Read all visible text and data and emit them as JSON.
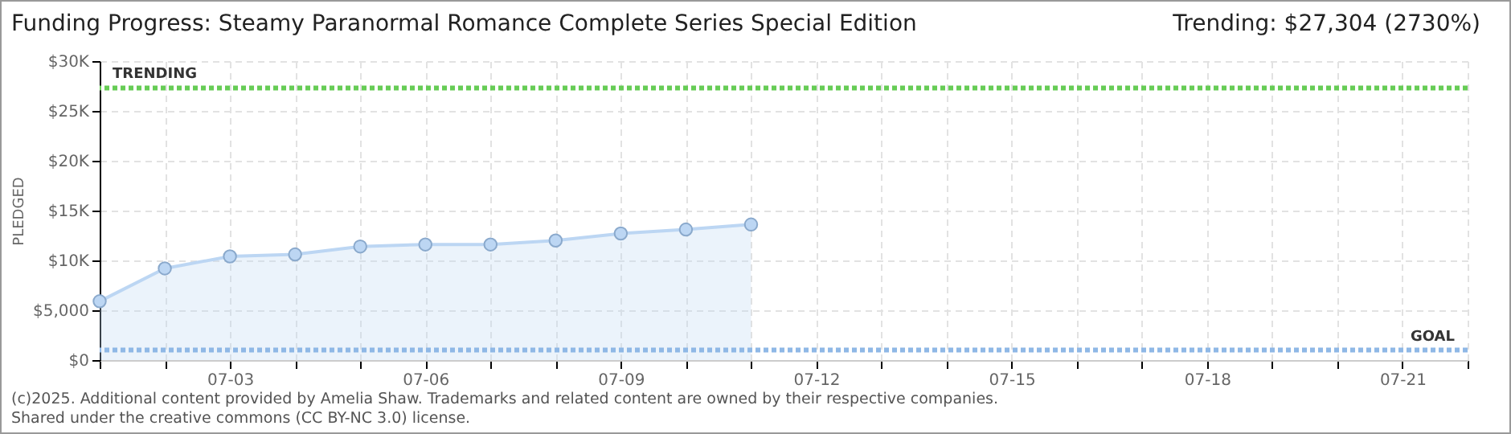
{
  "chart_data": {
    "type": "area",
    "title": "Funding Progress: Steamy Paranormal Romance Complete Series Special Edition",
    "subtitle": "Trending:  $27,304 (2730%)",
    "ylabel": "PLEDGED",
    "x": [
      "--07-01",
      "--07-02",
      "--07-03",
      "--07-04",
      "--07-05",
      "--07-06",
      "--07-07",
      "--07-08",
      "--07-09",
      "--07-10",
      "--07-11"
    ],
    "series": [
      {
        "color": "#bcd6f3",
        "values": [
          5900,
          9200,
          10400,
          10600,
          11400,
          11600,
          11600,
          12000,
          12700,
          13100,
          13600
        ]
      }
    ],
    "xlim": [
      "--07-01",
      "--07-22"
    ],
    "xticks": [
      {
        "value": "--07-01",
        "label": null
      },
      {
        "value": "--07-02",
        "label": null
      },
      {
        "value": "--07-03",
        "label": "07-03"
      },
      {
        "value": "--07-04",
        "label": null
      },
      {
        "value": "--07-05",
        "label": null
      },
      {
        "value": "--07-06",
        "label": "07-06"
      },
      {
        "value": "--07-07",
        "label": null
      },
      {
        "value": "--07-08",
        "label": null
      },
      {
        "value": "--07-09",
        "label": "07-09"
      },
      {
        "value": "--07-10",
        "label": null
      },
      {
        "value": "--07-11",
        "label": null
      },
      {
        "value": "--07-12",
        "label": "07-12"
      },
      {
        "value": "--07-13",
        "label": null
      },
      {
        "value": "--07-14",
        "label": null
      },
      {
        "value": "--07-15",
        "label": "07-15"
      },
      {
        "value": "--07-16",
        "label": null
      },
      {
        "value": "--07-17",
        "label": null
      },
      {
        "value": "--07-18",
        "label": "07-18"
      },
      {
        "value": "--07-19",
        "label": null
      },
      {
        "value": "--07-20",
        "label": null
      },
      {
        "value": "--07-21",
        "label": "07-21"
      },
      {
        "value": "--07-22",
        "label": null
      }
    ],
    "ylim": [
      0,
      30000
    ],
    "yticks": [
      {
        "value": 0,
        "label": "$0"
      },
      {
        "value": 5000,
        "label": "$5,000"
      },
      {
        "value": 10000,
        "label": "$10K"
      },
      {
        "value": 15000,
        "label": "$15K"
      },
      {
        "value": 20000,
        "label": "$20K"
      },
      {
        "value": 25000,
        "label": "$25K"
      },
      {
        "value": 30000,
        "label": "$30K"
      }
    ],
    "ref_lines": [
      {
        "axis": "y",
        "value": 27304,
        "label": "TRENDING",
        "color": "#66cc55",
        "line_style": "dotted"
      },
      {
        "axis": "y",
        "value": 1000,
        "label": "GOAL",
        "color": "#8fb8e6",
        "line_style": "dotted"
      }
    ],
    "grid": true,
    "marker": "circle",
    "annotations": [
      "(c)2025. Additional content provided by Amelia Shaw. Trademarks and related content are owned by their respective companies.",
      "Shared under the creative commons (CC BY-NC 3.0) license."
    ]
  }
}
